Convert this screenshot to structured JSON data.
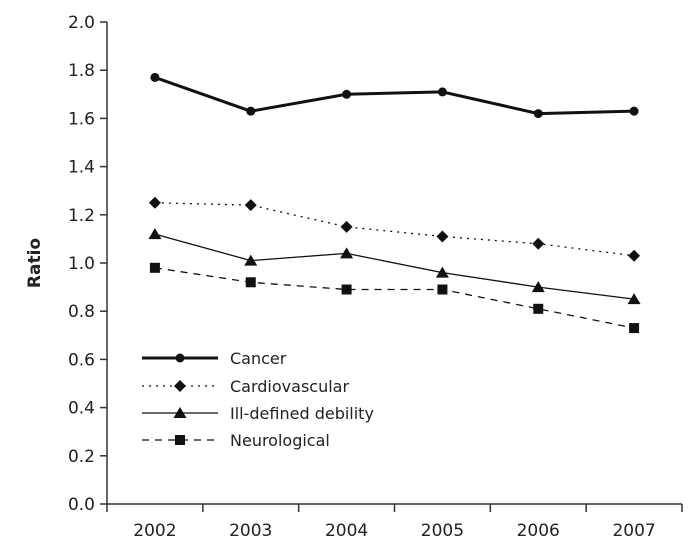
{
  "chart_data": {
    "type": "line",
    "title": "",
    "xlabel": "",
    "ylabel": "Ratio",
    "categories": [
      "2002",
      "2003",
      "2004",
      "2005",
      "2006",
      "2007"
    ],
    "ylim": [
      0.0,
      2.0
    ],
    "yticks": [
      "0.0",
      "0.2",
      "0.4",
      "0.6",
      "0.8",
      "1.0",
      "1.2",
      "1.4",
      "1.6",
      "1.8",
      "2.0"
    ],
    "grid": false,
    "legend_position": "bottom-left",
    "series": [
      {
        "name": "Cancer",
        "values": [
          1.77,
          1.63,
          1.7,
          1.71,
          1.62,
          1.63
        ],
        "marker": "circle",
        "line": "solid-thick"
      },
      {
        "name": "Cardiovascular",
        "values": [
          1.25,
          1.24,
          1.15,
          1.11,
          1.08,
          1.03
        ],
        "marker": "diamond",
        "line": "dotted"
      },
      {
        "name": "Ill-defined debility",
        "values": [
          1.12,
          1.01,
          1.04,
          0.96,
          0.9,
          0.85
        ],
        "marker": "triangle",
        "line": "solid-thin"
      },
      {
        "name": "Neurological",
        "values": [
          0.98,
          0.92,
          0.89,
          0.89,
          0.81,
          0.73
        ],
        "marker": "square",
        "line": "dashed"
      }
    ]
  }
}
